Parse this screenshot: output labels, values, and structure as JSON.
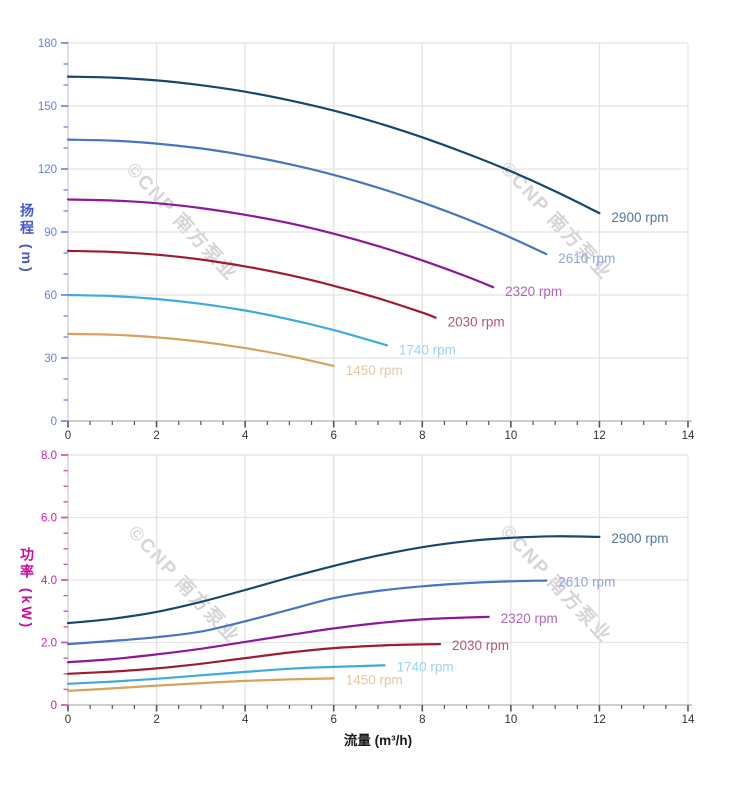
{
  "watermark": {
    "text": "©CNP 南方泵业"
  },
  "chart_data": [
    {
      "type": "line",
      "title": "",
      "ylabel": "扬程 (m)",
      "xlabel": "",
      "xlim": [
        0,
        14
      ],
      "ylim": [
        0,
        180
      ],
      "grid": true,
      "legend_position": "curve-end-labels",
      "x_ticks": {
        "major": 2,
        "minor": 0.5,
        "labels": [
          "0",
          "2",
          "4",
          "6",
          "8",
          "10",
          "12",
          "14"
        ]
      },
      "y_ticks": {
        "major": 30,
        "minor": 10,
        "labels": [
          "0",
          "30",
          "60",
          "90",
          "120",
          "150",
          "180"
        ]
      },
      "axis_colors": {
        "y_title": "#4557ce",
        "y_tick_label": "#6b7fdb",
        "y_tick": "#7b8ce2",
        "x_tick_label": "#333333",
        "x_tick": "#555555",
        "grid": "#e4e4e4",
        "spine_y": "#cccccc",
        "spine_x": "#b0b0b0"
      },
      "series": [
        {
          "name": "2900 rpm",
          "color": "#17476e",
          "label_color": "#54779b",
          "points": [
            [
              0,
              164
            ],
            [
              1,
              163.5
            ],
            [
              2,
              162.2
            ],
            [
              3,
              159.9
            ],
            [
              4,
              156.8
            ],
            [
              5,
              152.7
            ],
            [
              6,
              147.8
            ],
            [
              7,
              141.9
            ],
            [
              8,
              135.1
            ],
            [
              9,
              127.4
            ],
            [
              10,
              118.9
            ],
            [
              11,
              109.4
            ],
            [
              12,
              99
            ]
          ]
        },
        {
          "name": "2610 rpm",
          "color": "#4a73c2",
          "label_color": "#8fa6d8",
          "points": [
            [
              0,
              134
            ],
            [
              1,
              133.5
            ],
            [
              2,
              132.1
            ],
            [
              3,
              129.8
            ],
            [
              4,
              126.5
            ],
            [
              5,
              122.3
            ],
            [
              6,
              117.2
            ],
            [
              7,
              111.1
            ],
            [
              8,
              104.1
            ],
            [
              9,
              96.2
            ],
            [
              10,
              87.3
            ],
            [
              10.8,
              79.5
            ]
          ]
        },
        {
          "name": "2320 rpm",
          "color": "#8e189b",
          "label_color": "#b066bb",
          "points": [
            [
              0,
              105.5
            ],
            [
              1,
              105
            ],
            [
              2,
              103.7
            ],
            [
              3,
              101.4
            ],
            [
              4,
              98.2
            ],
            [
              5,
              94.2
            ],
            [
              6,
              89.2
            ],
            [
              7,
              83.3
            ],
            [
              8,
              76.5
            ],
            [
              9,
              68.8
            ],
            [
              9.6,
              63.7
            ]
          ]
        },
        {
          "name": "2030 rpm",
          "color": "#9e1b33",
          "label_color": "#b25871",
          "points": [
            [
              0,
              81
            ],
            [
              1,
              80.5
            ],
            [
              2,
              79.2
            ],
            [
              3,
              76.9
            ],
            [
              4,
              73.6
            ],
            [
              5,
              69.5
            ],
            [
              6,
              64.4
            ],
            [
              7,
              58.5
            ],
            [
              8,
              51.6
            ],
            [
              8.3,
              49.2
            ]
          ]
        },
        {
          "name": "1740 rpm",
          "color": "#3fa9e1",
          "label_color": "#9cd2f0",
          "points": [
            [
              0,
              60
            ],
            [
              1,
              59.5
            ],
            [
              2,
              58.1
            ],
            [
              3,
              55.8
            ],
            [
              4,
              52.6
            ],
            [
              5,
              48.4
            ],
            [
              6,
              43.3
            ],
            [
              7,
              37.3
            ],
            [
              7.2,
              36
            ]
          ]
        },
        {
          "name": "1450 rpm",
          "color": "#d7a15e",
          "label_color": "#e4c8a0",
          "points": [
            [
              0,
              41.5
            ],
            [
              1,
              41.1
            ],
            [
              2,
              39.8
            ],
            [
              3,
              37.7
            ],
            [
              4,
              34.7
            ],
            [
              5,
              30.9
            ],
            [
              6,
              26.2
            ]
          ]
        }
      ]
    },
    {
      "type": "line",
      "title": "",
      "ylabel": "功率 (kW)",
      "xlabel": "流量 (m³/h)",
      "xlim": [
        0,
        14
      ],
      "ylim": [
        0,
        8
      ],
      "grid": true,
      "legend_position": "curve-end-labels",
      "x_ticks": {
        "major": 2,
        "minor": 0.5,
        "labels": [
          "0",
          "2",
          "4",
          "6",
          "8",
          "10",
          "12",
          "14"
        ]
      },
      "y_ticks": {
        "major": 2,
        "minor": 0.5,
        "labels": [
          "0",
          "2.0",
          "4.0",
          "6.0",
          "8.0"
        ]
      },
      "axis_colors": {
        "y_title": "#c50f9d",
        "y_tick_label": "#d81aaa",
        "y_tick": "#dd55bb",
        "x_tick_label": "#333333",
        "x_tick": "#555555",
        "grid": "#e4e4e4",
        "spine_y": "#cccccc",
        "spine_x": "#b0b0b0"
      },
      "series": [
        {
          "name": "2900 rpm",
          "color": "#17476e",
          "label_color": "#54779b",
          "points": [
            [
              0,
              2.62
            ],
            [
              1,
              2.76
            ],
            [
              2,
              2.98
            ],
            [
              3,
              3.3
            ],
            [
              4,
              3.68
            ],
            [
              5,
              4.08
            ],
            [
              6,
              4.45
            ],
            [
              7,
              4.78
            ],
            [
              8,
              5.05
            ],
            [
              9,
              5.24
            ],
            [
              10,
              5.35
            ],
            [
              11,
              5.4
            ],
            [
              12,
              5.38
            ]
          ]
        },
        {
          "name": "2610 rpm",
          "color": "#4a73c2",
          "label_color": "#8fa6d8",
          "points": [
            [
              0,
              1.95
            ],
            [
              1,
              2.05
            ],
            [
              2,
              2.17
            ],
            [
              3,
              2.35
            ],
            [
              4,
              2.68
            ],
            [
              5,
              3.05
            ],
            [
              6,
              3.42
            ],
            [
              7,
              3.65
            ],
            [
              8,
              3.8
            ],
            [
              9,
              3.9
            ],
            [
              10,
              3.96
            ],
            [
              10.8,
              3.98
            ]
          ]
        },
        {
          "name": "2320 rpm",
          "color": "#8e189b",
          "label_color": "#b066bb",
          "points": [
            [
              0,
              1.37
            ],
            [
              1,
              1.47
            ],
            [
              2,
              1.62
            ],
            [
              3,
              1.8
            ],
            [
              4,
              2.02
            ],
            [
              5,
              2.24
            ],
            [
              6,
              2.45
            ],
            [
              7,
              2.62
            ],
            [
              8,
              2.74
            ],
            [
              9,
              2.8
            ],
            [
              9.5,
              2.82
            ]
          ]
        },
        {
          "name": "2030 rpm",
          "color": "#9e1b33",
          "label_color": "#b25871",
          "points": [
            [
              0,
              1
            ],
            [
              1,
              1.07
            ],
            [
              2,
              1.17
            ],
            [
              3,
              1.32
            ],
            [
              4,
              1.5
            ],
            [
              5,
              1.68
            ],
            [
              6,
              1.82
            ],
            [
              7,
              1.9
            ],
            [
              8,
              1.94
            ],
            [
              8.4,
              1.95
            ]
          ]
        },
        {
          "name": "1740 rpm",
          "color": "#3fa9e1",
          "label_color": "#9cd2f0",
          "points": [
            [
              0,
              0.68
            ],
            [
              1,
              0.75
            ],
            [
              2,
              0.84
            ],
            [
              3,
              0.95
            ],
            [
              4,
              1.06
            ],
            [
              5,
              1.16
            ],
            [
              6,
              1.22
            ],
            [
              7.15,
              1.27
            ]
          ]
        },
        {
          "name": "1450 rpm",
          "color": "#d7a15e",
          "label_color": "#e4c8a0",
          "points": [
            [
              0,
              0.45
            ],
            [
              1,
              0.53
            ],
            [
              2,
              0.62
            ],
            [
              3,
              0.7
            ],
            [
              4,
              0.77
            ],
            [
              5,
              0.82
            ],
            [
              6,
              0.85
            ]
          ]
        }
      ]
    }
  ]
}
